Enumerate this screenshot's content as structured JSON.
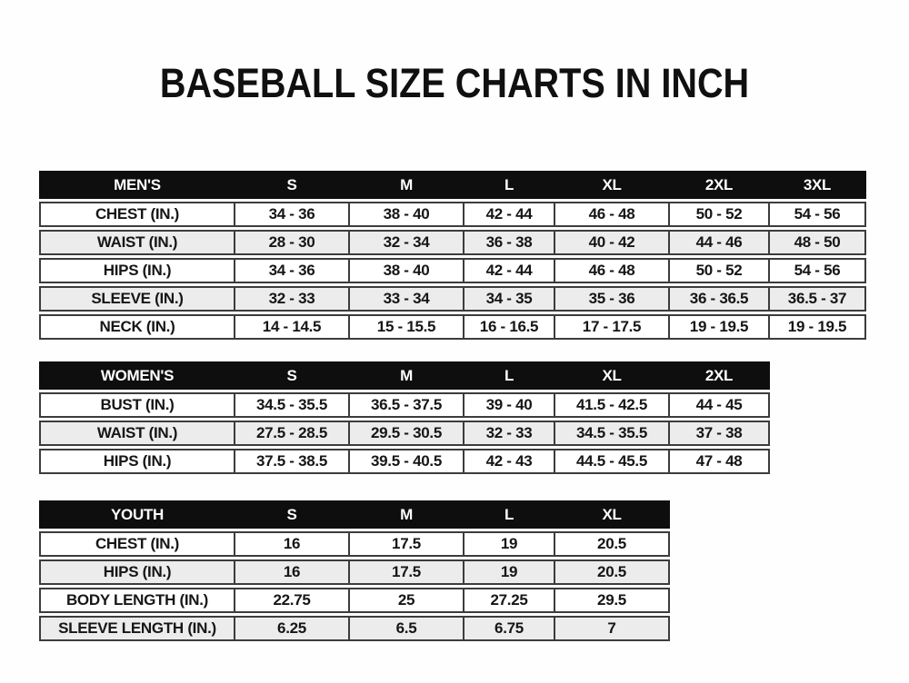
{
  "page": {
    "title": "BASEBALL SIZE CHARTS IN INCH"
  },
  "colors": {
    "header_bg": "#0e0e0e",
    "header_text": "#ffffff",
    "row_bg": "#ffffff",
    "row_alt_bg": "#ececec",
    "border": "#3c3c3c",
    "text": "#161616",
    "page_bg": "#fefefe"
  },
  "tables": [
    {
      "name": "mens",
      "header": [
        "MEN'S",
        "S",
        "M",
        "L",
        "XL",
        "2XL",
        "3XL"
      ],
      "rows": [
        {
          "label": "CHEST (IN.)",
          "values": [
            "34 - 36",
            "38 - 40",
            "42 - 44",
            "46 - 48",
            "50 - 52",
            "54 - 56"
          ]
        },
        {
          "label": "WAIST (IN.)",
          "values": [
            "28 - 30",
            "32 - 34",
            "36 - 38",
            "40 - 42",
            "44 - 46",
            "48 - 50"
          ]
        },
        {
          "label": "HIPS (IN.)",
          "values": [
            "34 - 36",
            "38 - 40",
            "42 - 44",
            "46 - 48",
            "50 - 52",
            "54 - 56"
          ]
        },
        {
          "label": "SLEEVE (IN.)",
          "values": [
            "32 - 33",
            "33 - 34",
            "34 - 35",
            "35 - 36",
            "36 - 36.5",
            "36.5 - 37"
          ]
        },
        {
          "label": "NECK (IN.)",
          "values": [
            "14 - 14.5",
            "15 - 15.5",
            "16 - 16.5",
            "17 - 17.5",
            "19 - 19.5",
            "19 - 19.5"
          ]
        }
      ]
    },
    {
      "name": "womens",
      "header": [
        "WOMEN'S",
        "S",
        "M",
        "L",
        "XL",
        "2XL"
      ],
      "rows": [
        {
          "label": "BUST (IN.)",
          "values": [
            "34.5 - 35.5",
            "36.5 - 37.5",
            "39 - 40",
            "41.5 - 42.5",
            "44 - 45"
          ]
        },
        {
          "label": "WAIST (IN.)",
          "values": [
            "27.5 - 28.5",
            "29.5 - 30.5",
            "32 - 33",
            "34.5 - 35.5",
            "37 - 38"
          ]
        },
        {
          "label": "HIPS (IN.)",
          "values": [
            "37.5 - 38.5",
            "39.5 - 40.5",
            "42 - 43",
            "44.5 - 45.5",
            "47 - 48"
          ]
        }
      ]
    },
    {
      "name": "youth",
      "header": [
        "YOUTH",
        "S",
        "M",
        "L",
        "XL"
      ],
      "rows": [
        {
          "label": "CHEST (IN.)",
          "values": [
            "16",
            "17.5",
            "19",
            "20.5"
          ]
        },
        {
          "label": "HIPS (IN.)",
          "values": [
            "16",
            "17.5",
            "19",
            "20.5"
          ]
        },
        {
          "label": "BODY LENGTH (IN.)",
          "values": [
            "22.75",
            "25",
            "27.25",
            "29.5"
          ]
        },
        {
          "label": "SLEEVE LENGTH (IN.)",
          "values": [
            "6.25",
            "6.5",
            "6.75",
            "7"
          ]
        }
      ]
    }
  ]
}
